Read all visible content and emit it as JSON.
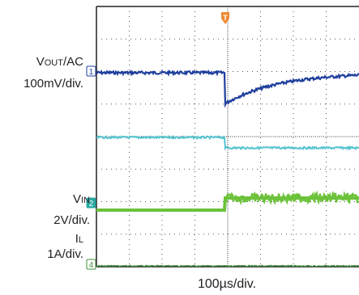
{
  "chart_data": {
    "type": "line",
    "title": "",
    "xlabel": "100µs/div.",
    "grid": true,
    "x_divisions": 8,
    "y_divisions": 8,
    "trigger_marker": "T",
    "colors": {
      "vout": "#1f3f9e",
      "vin_ripple": "#55c3d0",
      "vin": "#6cc23b",
      "il": "#3f8f3c",
      "grid_dots": "#555555",
      "trigger": "#f08a32"
    },
    "channels": [
      {
        "id": "1",
        "name": "VOUT/AC",
        "name_main": "V",
        "name_sub": "OUT",
        "name_tail": "/AC",
        "scale": "100mV/div."
      },
      {
        "id": "2",
        "name": "VIN",
        "name_main": "V",
        "name_sub": "IN",
        "name_tail": "",
        "scale": "2V/div."
      },
      {
        "id": "4",
        "name": "IL",
        "name_main": "I",
        "name_sub": "L",
        "name_tail": "",
        "scale": "1A/div."
      }
    ],
    "series": [
      {
        "channel": "1",
        "points_div": [
          [
            0,
            0
          ],
          [
            3.9,
            0
          ],
          [
            3.9,
            -1.0
          ],
          [
            4.5,
            -0.6
          ],
          [
            5.5,
            -0.25
          ],
          [
            6.5,
            -0.1
          ],
          [
            8,
            0
          ]
        ]
      },
      {
        "channel": "2-ripple",
        "points_div": [
          [
            0,
            -2.0
          ],
          [
            3.9,
            -2.0
          ],
          [
            3.9,
            -2.3
          ],
          [
            8,
            -2.3
          ]
        ]
      },
      {
        "channel": "2",
        "points_div": [
          [
            0,
            -4.2
          ],
          [
            3.9,
            -4.2
          ],
          [
            3.9,
            -3.6
          ],
          [
            8,
            -3.6
          ]
        ]
      }
    ]
  }
}
